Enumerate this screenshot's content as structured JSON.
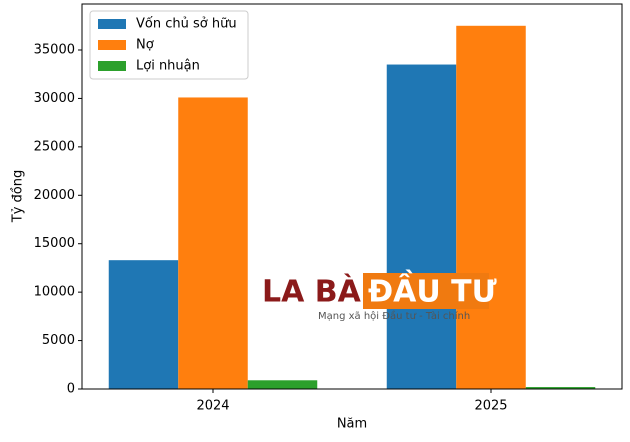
{
  "chart_data": {
    "type": "bar",
    "xlabel": "Năm",
    "ylabel": "Tỷ đồng",
    "categories": [
      "2024",
      "2025"
    ],
    "series": [
      {
        "name": "Vốn chủ sở hữu",
        "color": "#1f77b4",
        "values": [
          13300,
          33500
        ]
      },
      {
        "name": "Nợ",
        "color": "#ff7f0e",
        "values": [
          30100,
          37500
        ]
      },
      {
        "name": "Lợi nhuận",
        "color": "#2ca02c",
        "values": [
          900,
          200
        ]
      }
    ],
    "ylim": [
      0,
      39750
    ],
    "yticks": [
      0,
      5000,
      10000,
      15000,
      20000,
      25000,
      30000,
      35000
    ],
    "legend": "upper left",
    "watermark": [
      "LA BÀN",
      "ĐẦU TƯ",
      "Mạng xã hội Đầu tư - Tài chính"
    ]
  }
}
